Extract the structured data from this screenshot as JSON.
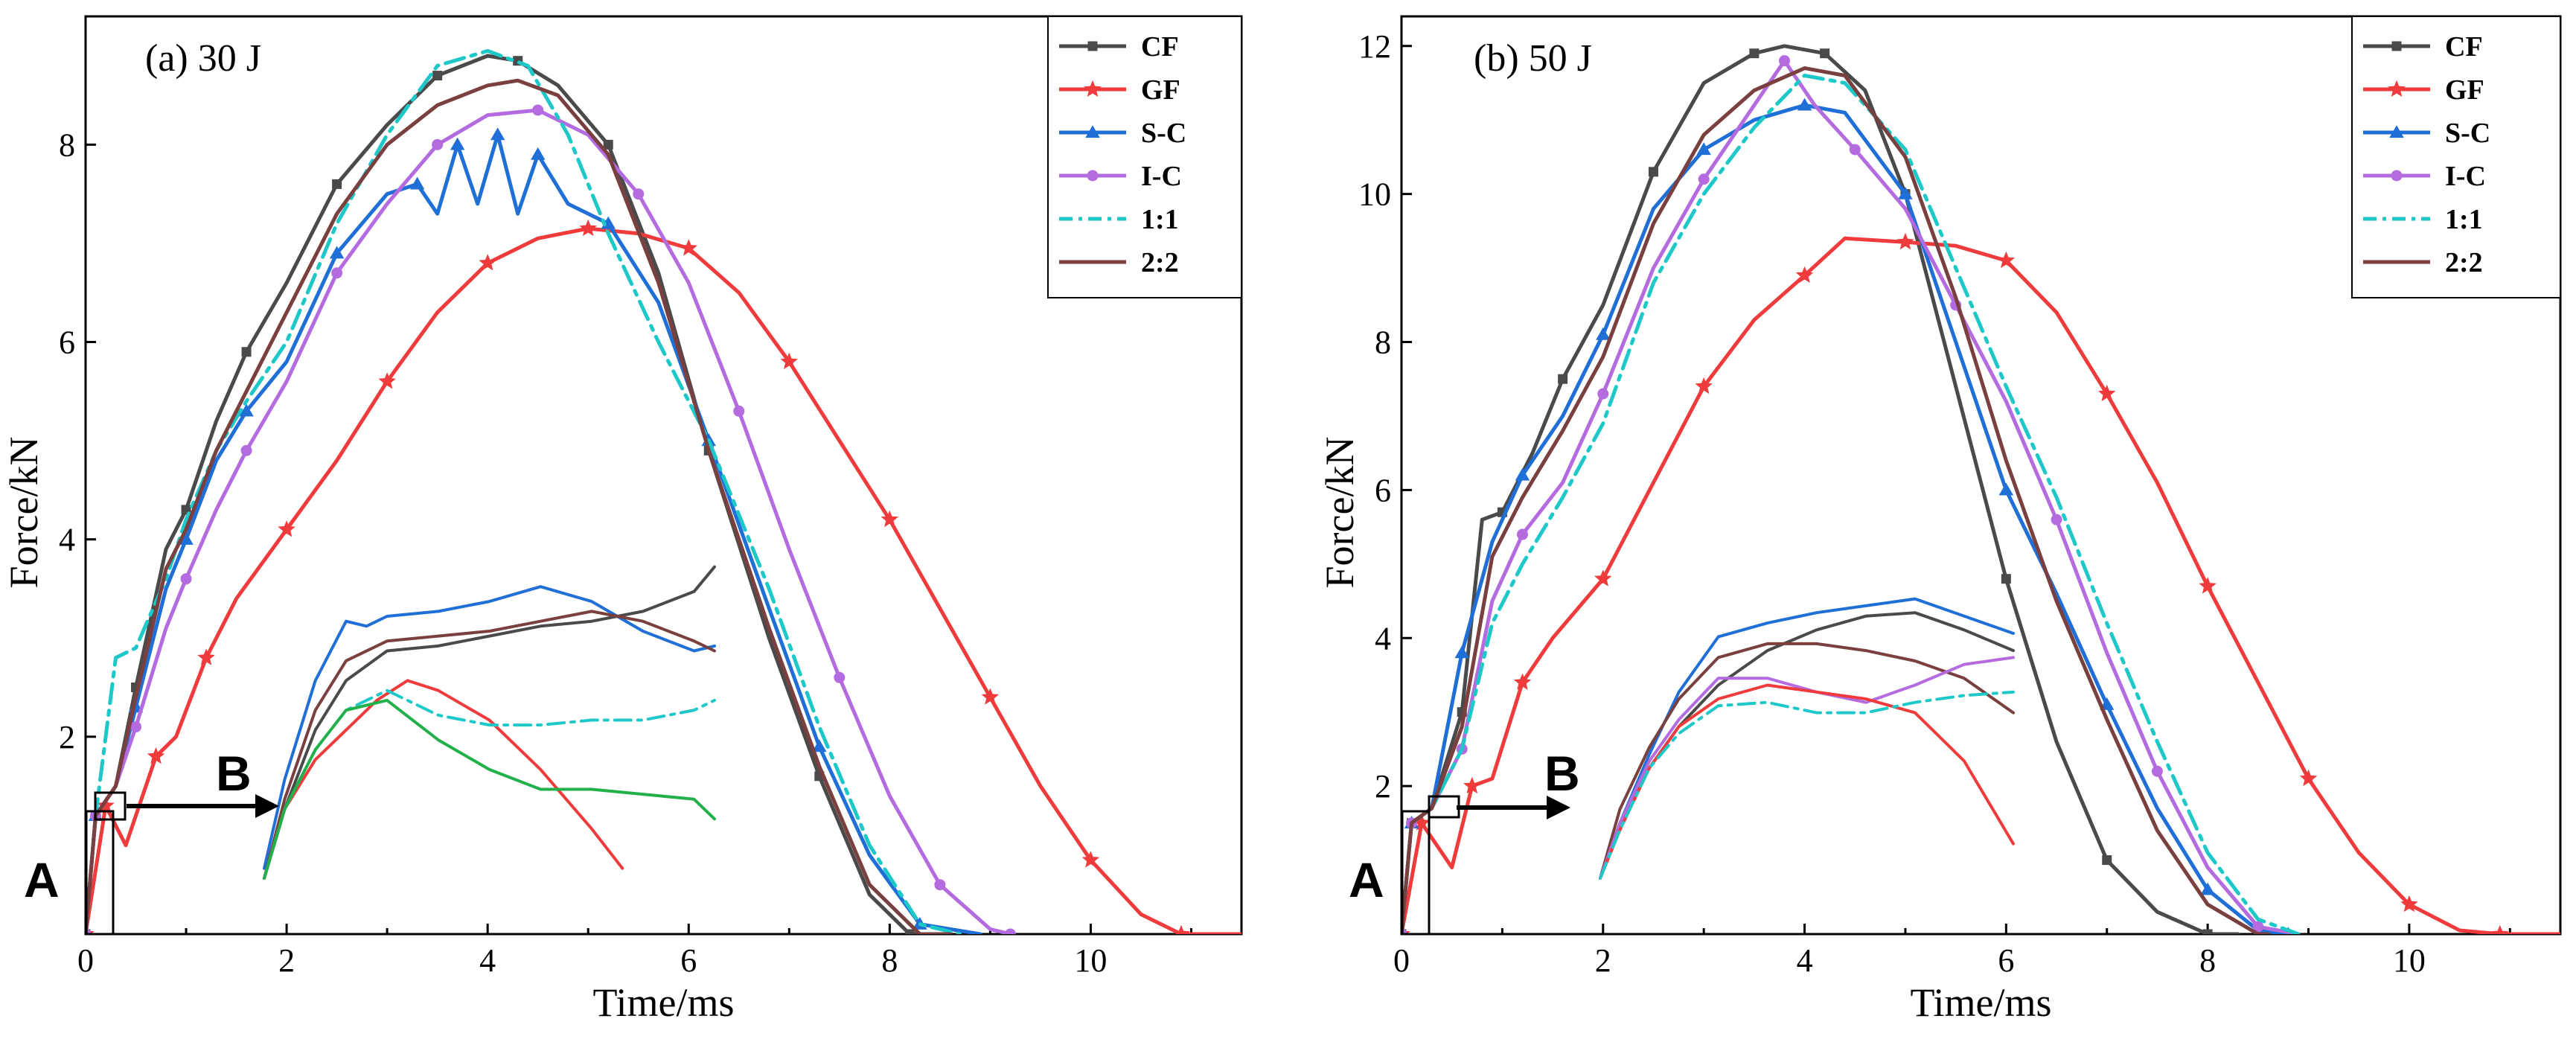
{
  "colors": {
    "CF": "#4a4a4a",
    "GF": "#ef3b3b",
    "S-C": "#1f6fd6",
    "I-C": "#b46be0",
    "1:1": "#1ec8c8",
    "2:2": "#7a4040",
    "inset_extra": "#22b04a"
  },
  "chart_data": [
    {
      "type": "line",
      "title": "(a) 30 J",
      "xlabel": "Time/ms",
      "ylabel": "Force/kN",
      "xlim": [
        0,
        11.5
      ],
      "ylim": [
        0,
        9.3
      ],
      "xticks": [
        "0",
        "2",
        "4",
        "6",
        "8",
        "10"
      ],
      "yticks": [
        "2",
        "4",
        "6",
        "8"
      ],
      "legend_position": "top-right",
      "legend": [
        "CF",
        "GF",
        "S-C",
        "I-C",
        "1:1",
        "2:2"
      ],
      "callouts": {
        "A": "A",
        "B": "B"
      },
      "series": [
        {
          "name": "CF",
          "marker": "square",
          "x": [
            0,
            0.1,
            0.3,
            0.5,
            0.8,
            1.0,
            1.3,
            1.6,
            2.0,
            2.5,
            3.0,
            3.5,
            4.0,
            4.3,
            4.7,
            5.2,
            5.7,
            6.2,
            6.8,
            7.3,
            7.8,
            8.2,
            8.5
          ],
          "y": [
            0,
            1.2,
            1.5,
            2.5,
            3.9,
            4.3,
            5.2,
            5.9,
            6.6,
            7.6,
            8.2,
            8.7,
            8.9,
            8.85,
            8.6,
            8.0,
            6.7,
            4.9,
            3.0,
            1.6,
            0.4,
            0,
            0
          ]
        },
        {
          "name": "GF",
          "marker": "star",
          "x": [
            0,
            0.2,
            0.4,
            0.7,
            0.9,
            1.2,
            1.5,
            2.0,
            2.5,
            3.0,
            3.5,
            4.0,
            4.5,
            5.0,
            5.5,
            6.0,
            6.5,
            7.0,
            7.5,
            8.0,
            8.5,
            9.0,
            9.5,
            10.0,
            10.5,
            10.9,
            11.5
          ],
          "y": [
            0,
            1.3,
            0.9,
            1.8,
            2.0,
            2.8,
            3.4,
            4.1,
            4.8,
            5.6,
            6.3,
            6.8,
            7.05,
            7.15,
            7.1,
            6.95,
            6.5,
            5.8,
            5.0,
            4.2,
            3.3,
            2.4,
            1.5,
            0.75,
            0.2,
            0,
            0
          ]
        },
        {
          "name": "S-C",
          "marker": "triangle",
          "x": [
            0,
            0.1,
            0.3,
            0.5,
            0.8,
            1.0,
            1.3,
            1.6,
            2.0,
            2.5,
            3.0,
            3.3,
            3.5,
            3.7,
            3.9,
            4.1,
            4.3,
            4.5,
            4.8,
            5.2,
            5.7,
            6.2,
            6.8,
            7.3,
            7.8,
            8.3,
            8.9
          ],
          "y": [
            0,
            1.2,
            1.5,
            2.3,
            3.5,
            4.0,
            4.8,
            5.3,
            5.8,
            6.9,
            7.5,
            7.6,
            7.3,
            8.0,
            7.4,
            8.1,
            7.3,
            7.9,
            7.4,
            7.2,
            6.4,
            5.0,
            3.3,
            1.9,
            0.8,
            0.1,
            0
          ]
        },
        {
          "name": "I-C",
          "marker": "circle",
          "x": [
            0,
            0.1,
            0.3,
            0.5,
            0.8,
            1.0,
            1.3,
            1.6,
            2.0,
            2.5,
            3.0,
            3.5,
            4.0,
            4.5,
            5.0,
            5.5,
            6.0,
            6.5,
            7.0,
            7.5,
            8.0,
            8.5,
            9.0,
            9.2
          ],
          "y": [
            0,
            1.2,
            1.5,
            2.1,
            3.1,
            3.6,
            4.3,
            4.9,
            5.6,
            6.7,
            7.4,
            8.0,
            8.3,
            8.35,
            8.1,
            7.5,
            6.6,
            5.3,
            3.9,
            2.6,
            1.4,
            0.5,
            0.05,
            0
          ]
        },
        {
          "name": "1:1",
          "marker": "none",
          "dash": "dashdot",
          "x": [
            0,
            0.1,
            0.3,
            0.5,
            0.8,
            1.0,
            1.3,
            1.6,
            2.0,
            2.5,
            3.0,
            3.5,
            4.0,
            4.4,
            4.8,
            5.2,
            5.7,
            6.2,
            6.8,
            7.3,
            7.8,
            8.3,
            8.7
          ],
          "y": [
            0,
            1.2,
            2.8,
            2.9,
            3.6,
            4.2,
            4.9,
            5.4,
            6.0,
            7.2,
            8.1,
            8.8,
            8.95,
            8.8,
            8.1,
            7.1,
            6.0,
            5.0,
            3.5,
            2.1,
            0.9,
            0.1,
            0
          ]
        },
        {
          "name": "2:2",
          "marker": "none",
          "x": [
            0,
            0.1,
            0.3,
            0.5,
            0.8,
            1.0,
            1.3,
            1.6,
            2.0,
            2.5,
            3.0,
            3.5,
            4.0,
            4.3,
            4.7,
            5.2,
            5.7,
            6.2,
            6.8,
            7.3,
            7.8,
            8.3,
            8.6
          ],
          "y": [
            0,
            1.2,
            1.5,
            2.4,
            3.7,
            4.1,
            4.9,
            5.5,
            6.3,
            7.3,
            8.0,
            8.4,
            8.6,
            8.65,
            8.5,
            7.9,
            6.6,
            4.9,
            3.1,
            1.7,
            0.5,
            0,
            0
          ]
        }
      ],
      "inset_series": [
        {
          "name": "CF",
          "x": [
            1.8,
            2.0,
            2.3,
            2.6,
            3.0,
            3.5,
            4.0,
            4.5,
            5.0,
            5.5,
            6.0,
            6.2
          ],
          "y": [
            0.5,
            1.2,
            2.0,
            2.5,
            2.8,
            2.85,
            2.95,
            3.05,
            3.1,
            3.2,
            3.4,
            3.65
          ]
        },
        {
          "name": "S-C",
          "x": [
            1.8,
            2.0,
            2.3,
            2.6,
            2.8,
            3.0,
            3.5,
            4.0,
            4.5,
            5.0,
            5.5,
            6.0,
            6.2
          ],
          "y": [
            0.6,
            1.5,
            2.5,
            3.1,
            3.05,
            3.15,
            3.2,
            3.3,
            3.45,
            3.3,
            3.0,
            2.8,
            2.85
          ]
        },
        {
          "name": "2:2",
          "x": [
            1.8,
            2.0,
            2.3,
            2.6,
            3.0,
            3.5,
            4.0,
            4.5,
            5.0,
            5.5,
            6.0,
            6.2
          ],
          "y": [
            0.5,
            1.3,
            2.2,
            2.7,
            2.9,
            2.95,
            3.0,
            3.1,
            3.2,
            3.1,
            2.9,
            2.8
          ]
        },
        {
          "name": "GF",
          "x": [
            1.8,
            2.0,
            2.3,
            2.6,
            2.9,
            3.2,
            3.5,
            4.0,
            4.5,
            5.0,
            5.3
          ],
          "y": [
            0.5,
            1.2,
            1.7,
            2.0,
            2.3,
            2.5,
            2.4,
            2.1,
            1.6,
            1.0,
            0.6
          ]
        },
        {
          "name": "1:1",
          "x": [
            1.8,
            2.0,
            2.3,
            2.6,
            3.0,
            3.5,
            4.0,
            4.5,
            5.0,
            5.5,
            6.0,
            6.2
          ],
          "y": [
            0.5,
            1.2,
            1.8,
            2.2,
            2.4,
            2.15,
            2.05,
            2.05,
            2.1,
            2.1,
            2.2,
            2.3
          ]
        },
        {
          "name": "inset_extra",
          "x": [
            1.8,
            2.0,
            2.3,
            2.6,
            3.0,
            3.5,
            4.0,
            4.5,
            5.0,
            5.5,
            6.0,
            6.2
          ],
          "y": [
            0.5,
            1.2,
            1.8,
            2.2,
            2.3,
            1.9,
            1.6,
            1.4,
            1.4,
            1.35,
            1.3,
            1.1
          ]
        }
      ]
    },
    {
      "type": "line",
      "title": "(b) 50 J",
      "xlabel": "Time/ms",
      "ylabel": "Force/kN",
      "xlim": [
        0,
        11.5
      ],
      "ylim": [
        0,
        12.4
      ],
      "xticks": [
        "0",
        "2",
        "4",
        "6",
        "8",
        "10"
      ],
      "yticks": [
        "2",
        "4",
        "6",
        "8",
        "10",
        "12"
      ],
      "legend_position": "top-right",
      "legend": [
        "CF",
        "GF",
        "S-C",
        "I-C",
        "1:1",
        "2:2"
      ],
      "callouts": {
        "A": "A",
        "B": "B"
      },
      "series": [
        {
          "name": "CF",
          "marker": "square",
          "x": [
            0,
            0.1,
            0.3,
            0.6,
            0.8,
            1.0,
            1.3,
            1.6,
            2.0,
            2.5,
            3.0,
            3.5,
            3.8,
            4.2,
            4.6,
            5.0,
            5.5,
            6.0,
            6.5,
            7.0,
            7.5,
            8.0,
            8.3
          ],
          "y": [
            0,
            1.5,
            1.7,
            3.0,
            5.6,
            5.7,
            6.5,
            7.5,
            8.5,
            10.3,
            11.5,
            11.9,
            12.0,
            11.9,
            11.4,
            10.0,
            7.4,
            4.8,
            2.6,
            1.0,
            0.3,
            0,
            0
          ]
        },
        {
          "name": "GF",
          "marker": "star",
          "x": [
            0,
            0.2,
            0.5,
            0.7,
            0.9,
            1.2,
            1.5,
            2.0,
            2.5,
            3.0,
            3.5,
            4.0,
            4.4,
            5.0,
            5.5,
            6.0,
            6.5,
            7.0,
            7.5,
            8.0,
            8.5,
            9.0,
            9.5,
            10.0,
            10.5,
            10.9,
            11.5
          ],
          "y": [
            0,
            1.5,
            0.9,
            2.0,
            2.1,
            3.4,
            4.0,
            4.8,
            6.1,
            7.4,
            8.3,
            8.9,
            9.4,
            9.35,
            9.3,
            9.1,
            8.4,
            7.3,
            6.1,
            4.7,
            3.4,
            2.1,
            1.1,
            0.4,
            0.05,
            0,
            0
          ]
        },
        {
          "name": "S-C",
          "marker": "triangle",
          "x": [
            0,
            0.1,
            0.3,
            0.6,
            0.9,
            1.2,
            1.6,
            2.0,
            2.5,
            3.0,
            3.5,
            4.0,
            4.4,
            5.0,
            5.5,
            6.0,
            6.5,
            7.0,
            7.5,
            8.0,
            8.5,
            8.8
          ],
          "y": [
            0,
            1.5,
            1.7,
            3.8,
            5.3,
            6.2,
            7.0,
            8.1,
            9.8,
            10.6,
            11.0,
            11.2,
            11.1,
            10.0,
            8.0,
            6.0,
            4.6,
            3.1,
            1.7,
            0.6,
            0.05,
            0
          ]
        },
        {
          "name": "I-C",
          "marker": "circle",
          "x": [
            0,
            0.1,
            0.3,
            0.6,
            0.9,
            1.2,
            1.6,
            2.0,
            2.5,
            3.0,
            3.5,
            3.8,
            4.1,
            4.5,
            5.0,
            5.5,
            6.0,
            6.5,
            7.0,
            7.5,
            8.0,
            8.5,
            8.9
          ],
          "y": [
            0,
            1.5,
            1.7,
            2.5,
            4.5,
            5.4,
            6.1,
            7.3,
            9.0,
            10.2,
            11.2,
            11.8,
            11.2,
            10.6,
            9.8,
            8.5,
            7.2,
            5.6,
            3.8,
            2.2,
            0.9,
            0.1,
            0
          ]
        },
        {
          "name": "1:1",
          "marker": "none",
          "dash": "dashdot",
          "x": [
            0,
            0.1,
            0.3,
            0.6,
            0.9,
            1.2,
            1.6,
            2.0,
            2.5,
            3.0,
            3.5,
            4.0,
            4.4,
            5.0,
            5.5,
            6.0,
            6.5,
            7.0,
            7.5,
            8.0,
            8.5,
            8.9
          ],
          "y": [
            0,
            1.5,
            1.7,
            2.5,
            4.2,
            5.0,
            5.9,
            6.9,
            8.8,
            10.0,
            10.9,
            11.6,
            11.5,
            10.6,
            9.0,
            7.4,
            5.9,
            4.2,
            2.6,
            1.1,
            0.2,
            0
          ]
        },
        {
          "name": "2:2",
          "marker": "none",
          "x": [
            0,
            0.1,
            0.3,
            0.6,
            0.9,
            1.2,
            1.6,
            2.0,
            2.5,
            3.0,
            3.5,
            4.0,
            4.4,
            5.0,
            5.5,
            6.0,
            6.5,
            7.0,
            7.5,
            8.0,
            8.5,
            8.6
          ],
          "y": [
            0,
            1.5,
            1.7,
            2.8,
            5.1,
            5.9,
            6.8,
            7.8,
            9.6,
            10.8,
            11.4,
            11.7,
            11.6,
            10.5,
            8.6,
            6.4,
            4.5,
            2.9,
            1.4,
            0.4,
            0,
            0
          ]
        }
      ],
      "inset_series": [
        {
          "name": "CF",
          "x": [
            1.8,
            2.0,
            2.3,
            2.6,
            3.0,
            3.5,
            4.0,
            4.5,
            5.0,
            5.5,
            6.0
          ],
          "y": [
            0.4,
            1.2,
            2.0,
            2.6,
            3.2,
            3.7,
            4.0,
            4.2,
            4.25,
            4.0,
            3.7
          ]
        },
        {
          "name": "S-C",
          "x": [
            1.8,
            2.0,
            2.3,
            2.6,
            3.0,
            3.5,
            4.0,
            4.5,
            5.0,
            5.5,
            6.0
          ],
          "y": [
            0.4,
            1.2,
            2.2,
            3.1,
            3.9,
            4.1,
            4.25,
            4.35,
            4.45,
            4.2,
            3.95
          ]
        },
        {
          "name": "2:2",
          "x": [
            1.8,
            2.0,
            2.3,
            2.6,
            3.0,
            3.5,
            4.0,
            4.5,
            5.0,
            5.5,
            6.0
          ],
          "y": [
            0.4,
            1.4,
            2.3,
            3.0,
            3.6,
            3.8,
            3.8,
            3.7,
            3.55,
            3.3,
            2.8
          ]
        },
        {
          "name": "I-C",
          "x": [
            1.8,
            2.0,
            2.3,
            2.6,
            3.0,
            3.5,
            4.0,
            4.5,
            5.0,
            5.5,
            6.0
          ],
          "y": [
            0.4,
            1.2,
            2.1,
            2.7,
            3.3,
            3.3,
            3.1,
            2.95,
            3.2,
            3.5,
            3.6
          ]
        },
        {
          "name": "GF",
          "x": [
            1.8,
            2.0,
            2.3,
            2.6,
            3.0,
            3.5,
            4.0,
            4.5,
            5.0,
            5.5,
            6.0
          ],
          "y": [
            0.4,
            1.1,
            2.0,
            2.6,
            3.0,
            3.2,
            3.1,
            3.0,
            2.8,
            2.1,
            0.9
          ]
        },
        {
          "name": "1:1",
          "x": [
            1.8,
            2.0,
            2.3,
            2.6,
            3.0,
            3.5,
            4.0,
            4.5,
            5.0,
            5.5,
            6.0
          ],
          "y": [
            0.4,
            1.1,
            2.0,
            2.5,
            2.9,
            2.95,
            2.8,
            2.8,
            2.95,
            3.05,
            3.1
          ]
        }
      ]
    }
  ]
}
